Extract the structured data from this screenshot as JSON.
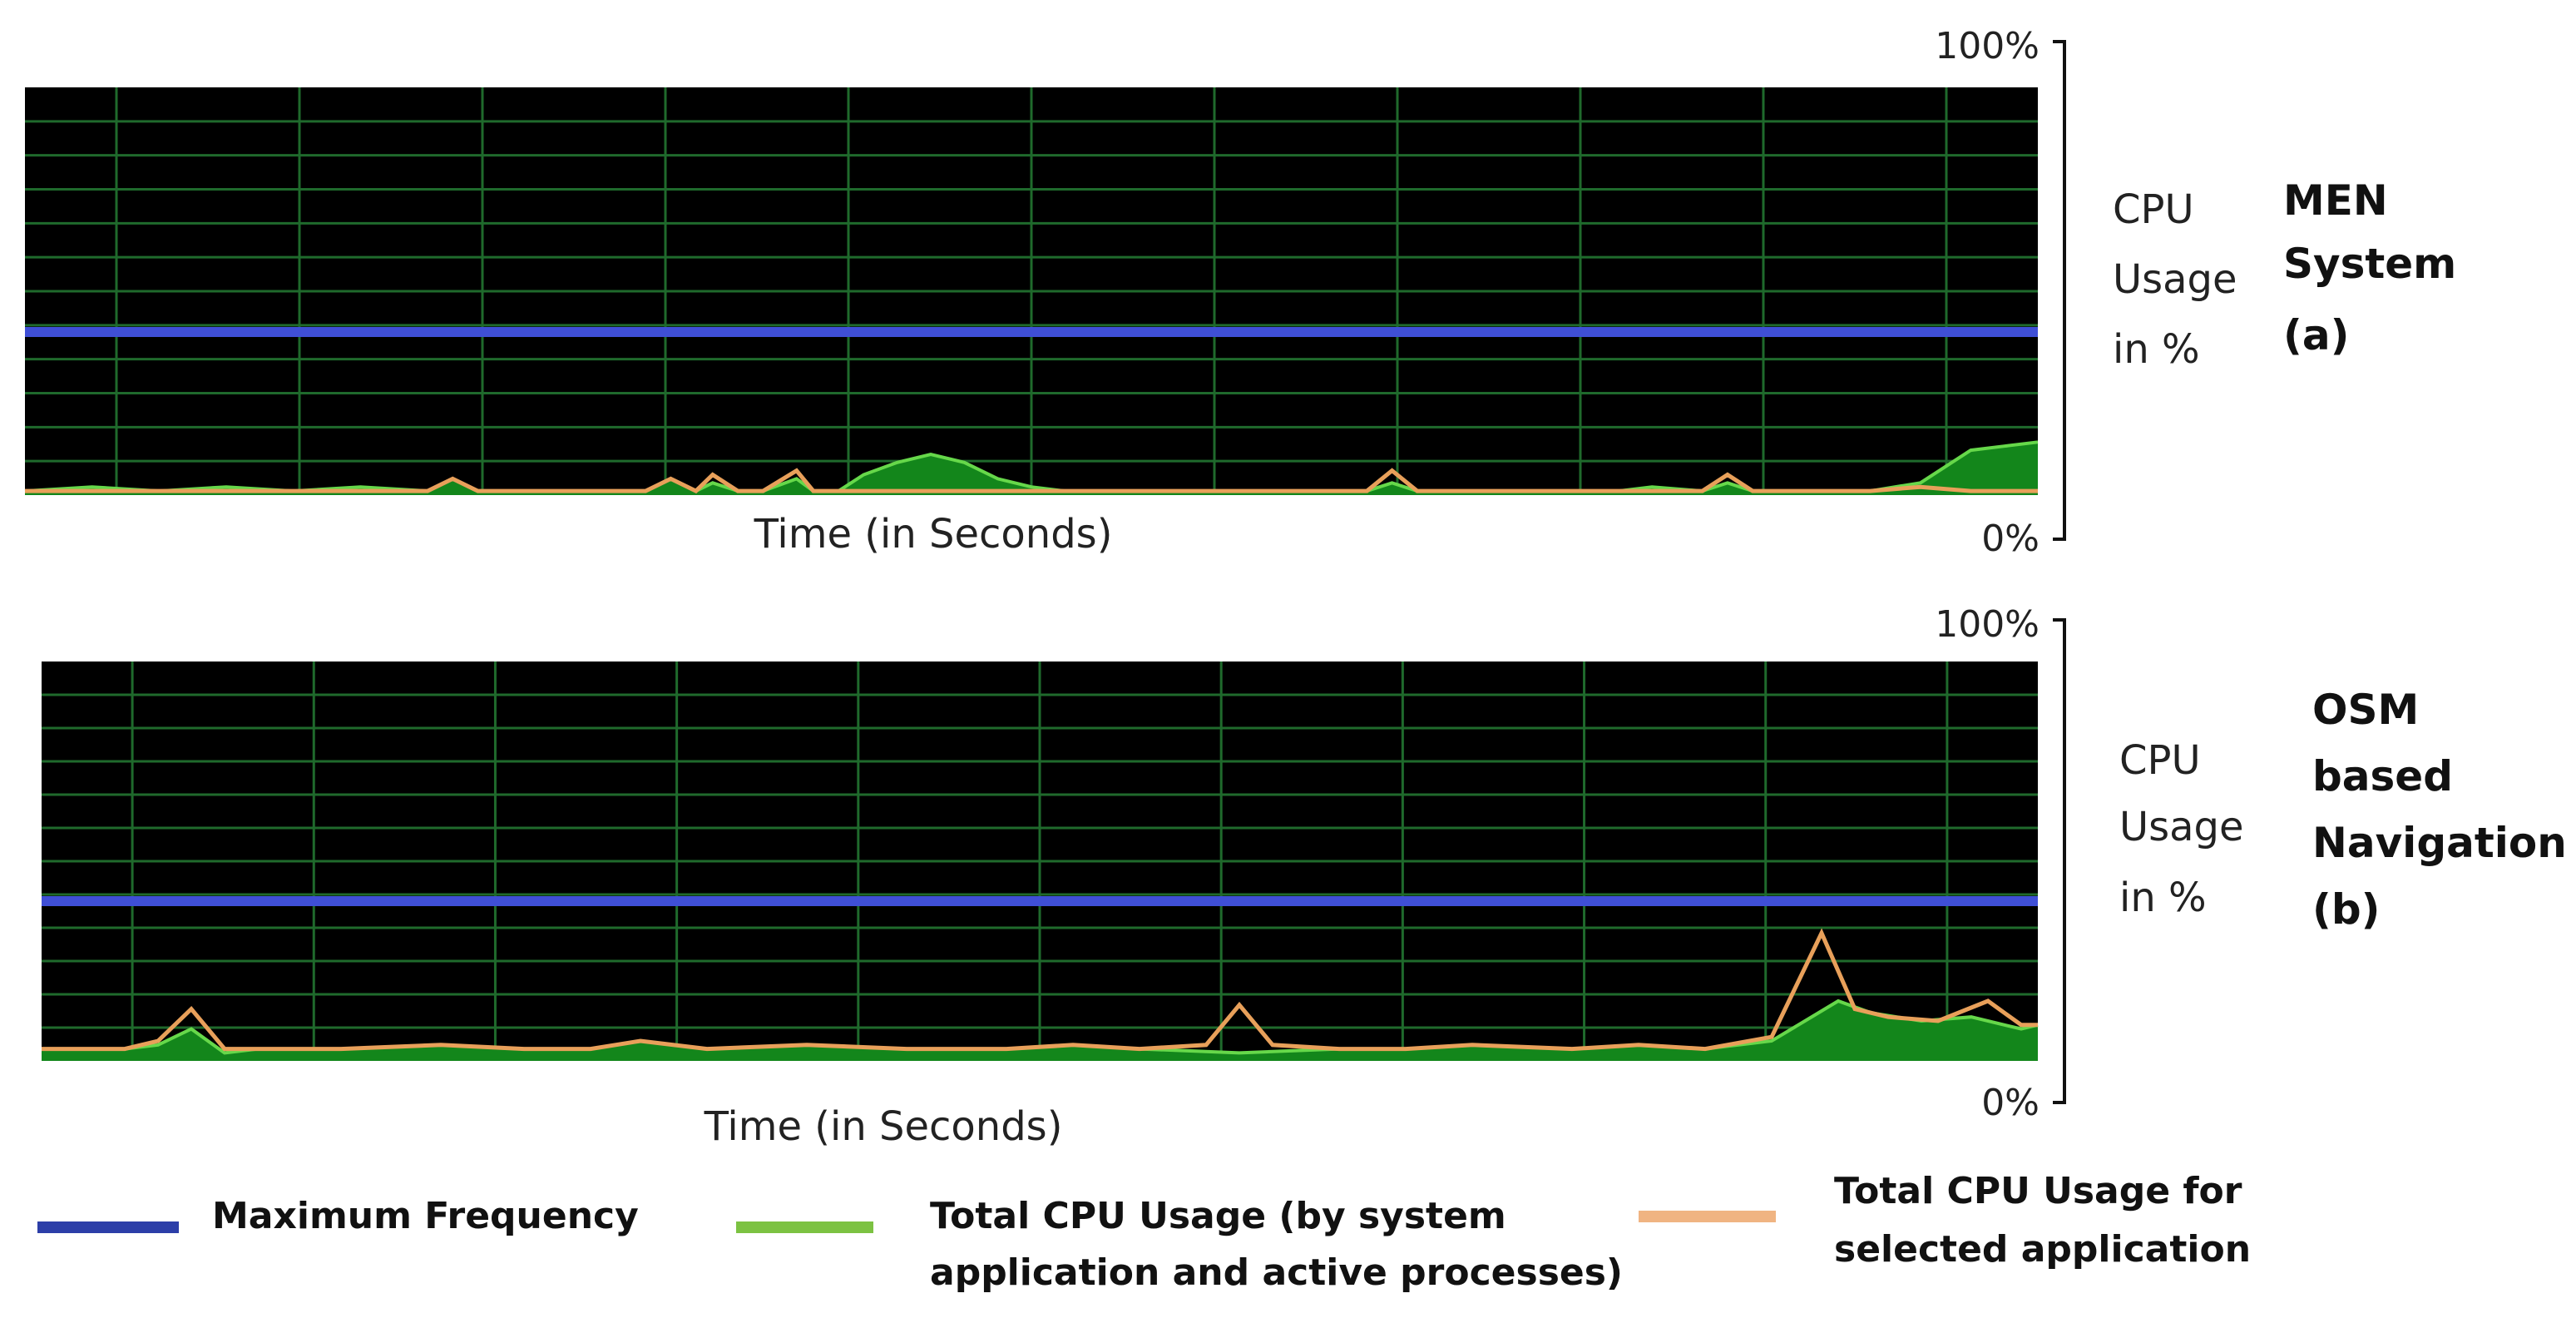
{
  "chart_data": [
    {
      "type": "area",
      "x_range": [
        0,
        120
      ],
      "ylim": [
        0,
        100
      ],
      "y_top_label": "100%",
      "y_bottom_label": "0%",
      "xlabel": "Time (in Seconds)",
      "ylabel_lines": [
        "CPU",
        "Usage",
        "in %"
      ],
      "system_label_lines": [
        "MEN",
        "System",
        "(a)"
      ],
      "grid": true,
      "vertical_grid_count": 11,
      "horizontal_grid_count": 12,
      "max_frequency": 40,
      "series": [
        {
          "name": "Total CPU Usage (by system application and active processes)",
          "x": [
            0,
            4,
            8,
            12,
            16,
            20,
            24,
            25.5,
            27,
            28,
            30,
            34,
            37,
            38.5,
            40,
            41,
            42.5,
            44,
            46,
            47,
            48.5,
            50,
            52,
            54,
            56,
            58,
            60,
            62,
            64,
            68,
            72,
            76,
            80,
            81.5,
            83,
            86,
            90,
            95,
            97,
            100,
            101.5,
            103,
            106,
            110,
            113,
            116,
            118,
            120
          ],
          "values": [
            1,
            2,
            1,
            2,
            1,
            2,
            1,
            4,
            1,
            1,
            1,
            1,
            1,
            4,
            1,
            3,
            1,
            1,
            4,
            1,
            1,
            5,
            8,
            10,
            8,
            4,
            2,
            1,
            1,
            1,
            1,
            1,
            1,
            3,
            1,
            1,
            1,
            1,
            2,
            1,
            3,
            1,
            1,
            1,
            3,
            11,
            12,
            13
          ]
        },
        {
          "name": "Total CPU Usage for selected application",
          "x": [
            0,
            4,
            8,
            12,
            16,
            20,
            24,
            25.5,
            27,
            28,
            30,
            34,
            37,
            38.5,
            40,
            41,
            42.5,
            44,
            46,
            47,
            48.5,
            50,
            52,
            54,
            56,
            58,
            60,
            62,
            64,
            68,
            72,
            76,
            80,
            81.5,
            83,
            86,
            90,
            95,
            97,
            100,
            101.5,
            103,
            106,
            110,
            113,
            116,
            118,
            120
          ],
          "values": [
            1,
            1,
            1,
            1,
            1,
            1,
            1,
            4,
            1,
            1,
            1,
            1,
            1,
            4,
            1,
            5,
            1,
            1,
            6,
            1,
            1,
            1,
            1,
            1,
            1,
            1,
            1,
            1,
            1,
            1,
            1,
            1,
            1,
            6,
            1,
            1,
            1,
            1,
            1,
            1,
            5,
            1,
            1,
            1,
            2,
            1,
            1,
            1
          ]
        }
      ]
    },
    {
      "type": "area",
      "x_range": [
        0,
        120
      ],
      "ylim": [
        0,
        100
      ],
      "y_top_label": "100%",
      "y_bottom_label": "0%",
      "xlabel": "Time (in Seconds)",
      "ylabel_lines": [
        "CPU",
        "Usage",
        "in %"
      ],
      "system_label_lines": [
        "OSM",
        "based",
        "Navigation",
        "(b)"
      ],
      "grid": true,
      "vertical_grid_count": 11,
      "horizontal_grid_count": 12,
      "max_frequency": 40,
      "series": [
        {
          "name": "Total CPU Usage (by system application and active processes)",
          "x": [
            0,
            2,
            5,
            7,
            9,
            11,
            13,
            18,
            24,
            29,
            33,
            36,
            40,
            46,
            52,
            58,
            62,
            66,
            72,
            78,
            82,
            86,
            92,
            96,
            100,
            104,
            106,
            108,
            110,
            113,
            116,
            119,
            120
          ],
          "values": [
            3,
            3,
            3,
            4,
            8,
            2,
            3,
            3,
            4,
            3,
            3,
            5,
            3,
            4,
            3,
            3,
            4,
            3,
            2,
            3,
            3,
            4,
            3,
            4,
            3,
            5,
            10,
            15,
            12,
            10,
            11,
            8,
            9
          ]
        },
        {
          "name": "Total CPU Usage for selected application",
          "x": [
            0,
            2,
            5,
            7,
            9,
            11,
            13,
            18,
            24,
            29,
            33,
            36,
            40,
            46,
            52,
            58,
            62,
            66,
            70,
            72,
            74,
            78,
            82,
            86,
            92,
            96,
            100,
            104,
            107,
            109,
            111,
            114,
            117,
            119,
            120
          ],
          "values": [
            3,
            3,
            3,
            5,
            13,
            3,
            3,
            3,
            4,
            3,
            3,
            5,
            3,
            4,
            3,
            3,
            4,
            3,
            4,
            14,
            4,
            3,
            3,
            4,
            3,
            4,
            3,
            6,
            32,
            13,
            11,
            10,
            15,
            9,
            9
          ]
        }
      ]
    }
  ],
  "legend": [
    {
      "label_lines": [
        "Maximum Frequency"
      ],
      "color": "#2c3ea8"
    },
    {
      "label_lines": [
        "Total CPU Usage (by system",
        "application and active processes)"
      ],
      "color": "#7cc242"
    },
    {
      "label_lines": [
        "Total CPU Usage for",
        "selected application"
      ],
      "color": "#f0b482"
    }
  ],
  "colors": {
    "plot_bg": "#000000",
    "grid": "#1f6a2c",
    "max_frequency": "#3f4fd6",
    "system_fill": "#13861b",
    "system_line": "#66d84a",
    "app_line": "#e8a05a"
  }
}
